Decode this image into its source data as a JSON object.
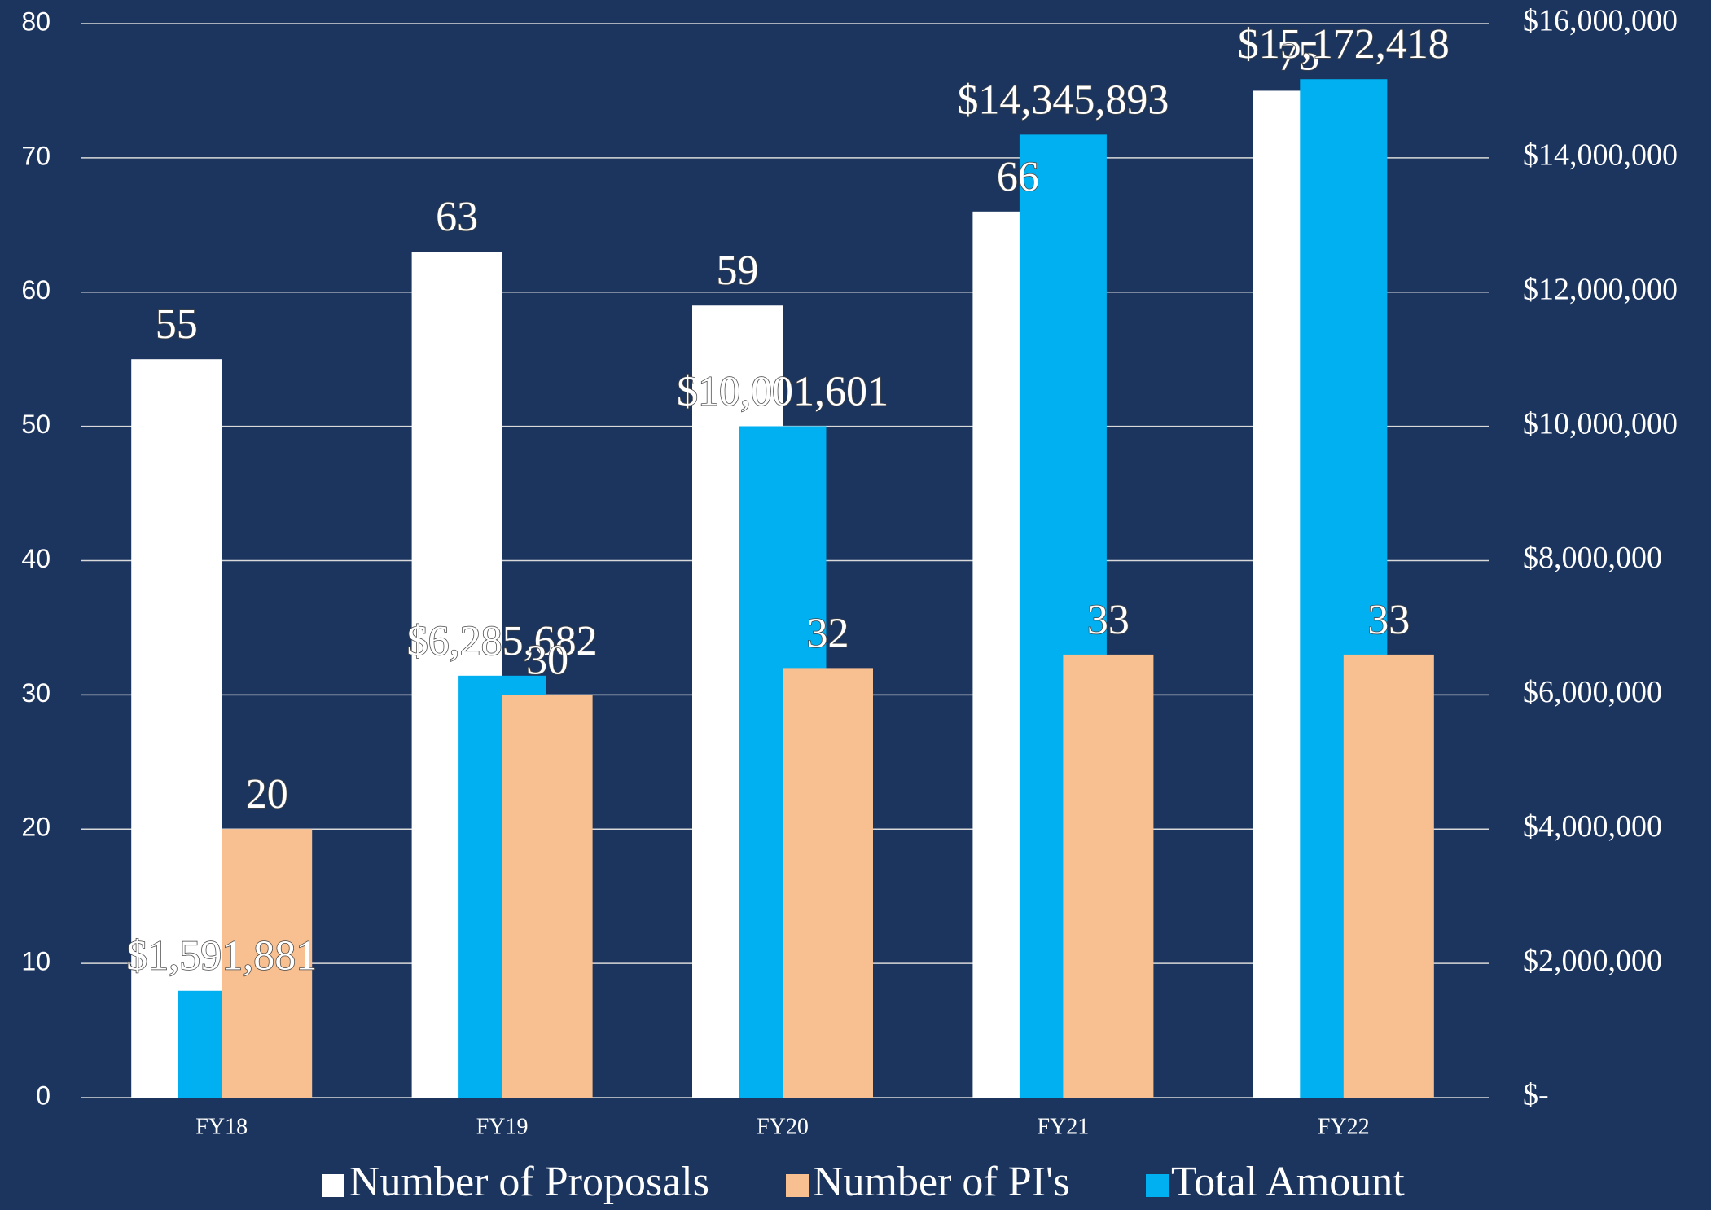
{
  "chart_data": {
    "type": "bar",
    "categories": [
      "FY18",
      "FY19",
      "FY20",
      "FY21",
      "FY22"
    ],
    "series": [
      {
        "name": "Number of Proposals",
        "color": "#ffffff",
        "values": [
          55,
          63,
          59,
          66,
          75
        ]
      },
      {
        "name": "Number of PI's",
        "color": "#f8bf90",
        "values": [
          20,
          30,
          32,
          33,
          33
        ]
      },
      {
        "name": "Total Amount",
        "color": "#00b0f0",
        "axis": "y2",
        "values": [
          1591881,
          6285682,
          10001601,
          14345893,
          15172418
        ],
        "value_labels": [
          "$1,591,881",
          "$6,285,682",
          "$10,001,601",
          "$14,345,893",
          "$15,172,418"
        ]
      }
    ],
    "ylim": [
      0,
      80
    ],
    "yticks": [
      0,
      10,
      20,
      30,
      40,
      50,
      60,
      70,
      80
    ],
    "y2lim": [
      0,
      16000000
    ],
    "y2ticks": [
      {
        "value": 0,
        "label": "$-"
      },
      {
        "value": 2000000,
        "label": "$2,000,000"
      },
      {
        "value": 4000000,
        "label": "$4,000,000"
      },
      {
        "value": 6000000,
        "label": "$6,000,000"
      },
      {
        "value": 8000000,
        "label": "$8,000,000"
      },
      {
        "value": 10000000,
        "label": "$10,000,000"
      },
      {
        "value": 12000000,
        "label": "$12,000,000"
      },
      {
        "value": 14000000,
        "label": "$14,000,000"
      },
      {
        "value": 16000000,
        "label": "$16,000,000"
      }
    ],
    "grid": true,
    "legend": "bottom"
  }
}
